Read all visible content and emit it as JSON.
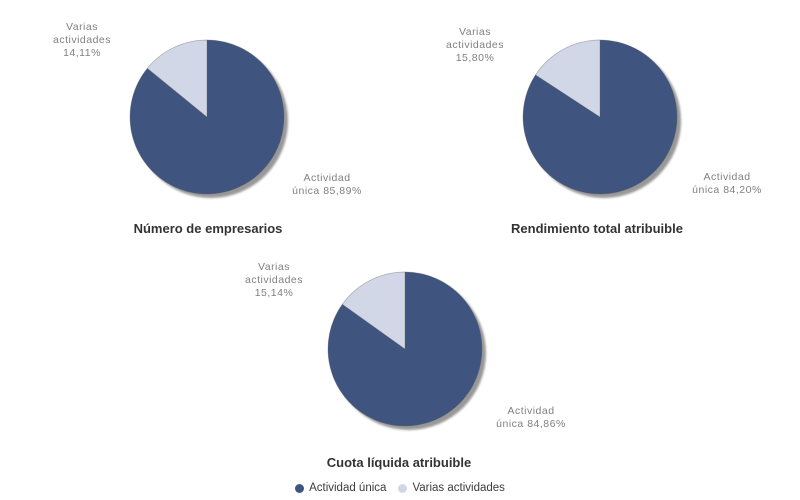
{
  "palette": {
    "actividad_unica": "#3F547E",
    "varias_actividades": "#D2D7E8",
    "shadow": "#989898",
    "label_text": "#808080",
    "title_text": "#333333",
    "legend_text": "#3C3C3C",
    "background": "#FFFFFF"
  },
  "legend": {
    "items": [
      {
        "label": "Actividad única",
        "color": "#3F547E"
      },
      {
        "label": "Varias actividades",
        "color": "#D2D7E8"
      }
    ]
  },
  "chart_data": [
    {
      "type": "pie",
      "title": "Número de empresarios",
      "categories": [
        "Actividad única",
        "Varias actividades"
      ],
      "values": [
        85.89,
        14.11
      ],
      "unit": "%",
      "slice_labels": [
        "Actividad\núnica 85,89%",
        "Varias\nactividades\n14,11%"
      ],
      "colors": [
        "#3F547E",
        "#D2D7E8"
      ],
      "start_angle_deg": 0,
      "direction": "clockwise",
      "legend_position": "bottom"
    },
    {
      "type": "pie",
      "title": "Rendimiento total atribuible",
      "categories": [
        "Actividad única",
        "Varias actividades"
      ],
      "values": [
        84.2,
        15.8
      ],
      "unit": "%",
      "slice_labels": [
        "Actividad\núnica 84,20%",
        "Varias\nactividades\n15,80%"
      ],
      "colors": [
        "#3F547E",
        "#D2D7E8"
      ],
      "start_angle_deg": 0,
      "direction": "clockwise",
      "legend_position": "bottom"
    },
    {
      "type": "pie",
      "title": "Cuota líquida atribuible",
      "categories": [
        "Actividad única",
        "Varias actividades"
      ],
      "values": [
        84.86,
        15.14
      ],
      "unit": "%",
      "slice_labels": [
        "Actividad\núnica 84,86%",
        "Varias\nactividades\n15,14%"
      ],
      "colors": [
        "#3F547E",
        "#D2D7E8"
      ],
      "start_angle_deg": 0,
      "direction": "clockwise",
      "legend_position": "bottom"
    }
  ]
}
